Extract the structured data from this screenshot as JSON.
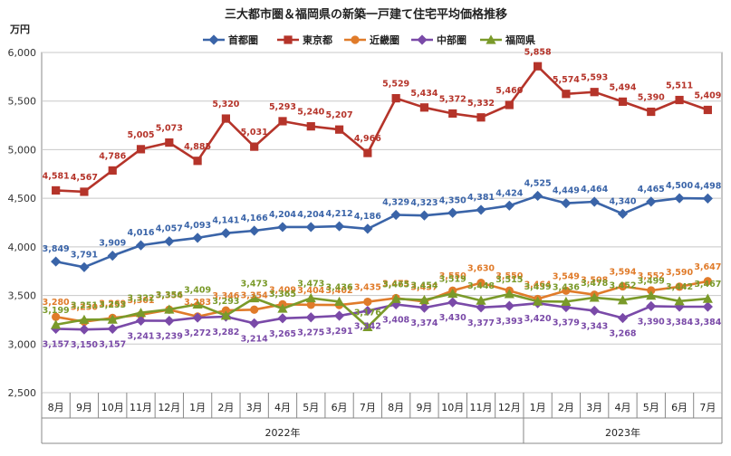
{
  "chart_data": {
    "type": "line",
    "title": "三大都市圏＆福岡県の新築一戸建て住宅平均価格推移",
    "unit_label": "万円",
    "ylim": [
      2500,
      6000
    ],
    "yticks": [
      2500,
      3000,
      3500,
      4000,
      4500,
      5000,
      5500,
      6000
    ],
    "ytick_labels": [
      "2,500",
      "3,000",
      "3,500",
      "4,000",
      "4,500",
      "5,000",
      "5,500",
      "6,000"
    ],
    "grid": true,
    "legend_position": "top",
    "categories": [
      "8月",
      "9月",
      "10月",
      "11月",
      "12月",
      "1月",
      "2月",
      "3月",
      "4月",
      "5月",
      "6月",
      "7月",
      "8月",
      "9月",
      "10月",
      "11月",
      "12月",
      "1月",
      "2月",
      "3月",
      "4月",
      "5月",
      "6月",
      "7月"
    ],
    "year_groups": [
      {
        "label": "2022年",
        "start": 0,
        "end": 16
      },
      {
        "label": "2023年",
        "start": 17,
        "end": 23
      }
    ],
    "series": [
      {
        "name": "首都圏",
        "color": "#3a64a8",
        "marker": "diamond",
        "values": [
          3849,
          3791,
          3909,
          4016,
          4057,
          4093,
          4141,
          4166,
          4204,
          4204,
          4212,
          4186,
          4329,
          4323,
          4350,
          4381,
          4424,
          4525,
          4449,
          4464,
          4340,
          4465,
          4500,
          4498
        ],
        "labels": [
          "3,849",
          "3,791",
          "3,909",
          "4,016",
          "4,057",
          "4,093",
          "4,141",
          "4,166",
          "4,204",
          "4,204",
          "4,212",
          "4,186",
          "4,329",
          "4,323",
          "4,350",
          "4,381",
          "4,424",
          "4,525",
          "4,449",
          "4,464",
          "4,340",
          "4,465",
          "4,500",
          "4,498"
        ]
      },
      {
        "name": "東京都",
        "color": "#b5342a",
        "marker": "square",
        "values": [
          4581,
          4567,
          4786,
          5005,
          5073,
          4885,
          5320,
          5031,
          5293,
          5240,
          5207,
          4966,
          5529,
          5434,
          5372,
          5332,
          5460,
          5858,
          5574,
          5593,
          5494,
          5390,
          5511,
          5409
        ],
        "labels": [
          "4,581",
          "4,567",
          "4,786",
          "5,005",
          "5,073",
          "4,885",
          "5,320",
          "5,031",
          "5,293",
          "5,240",
          "5,207",
          "4,966",
          "5,529",
          "5,434",
          "5,372",
          "5,332",
          "5,460",
          "5,858",
          "5,574",
          "5,593",
          "5,494",
          "5,390",
          "5,511",
          "5,409"
        ]
      },
      {
        "name": "近畿圏",
        "color": "#e07b2a",
        "marker": "circle",
        "values": [
          3280,
          3230,
          3269,
          3301,
          3354,
          3283,
          3346,
          3354,
          3409,
          3404,
          3402,
          3435,
          3473,
          3437,
          3550,
          3630,
          3550,
          3464,
          3549,
          3508,
          3594,
          3552,
          3590,
          3647
        ],
        "labels": [
          "3,280",
          "3,230",
          "3,269",
          "3,301",
          "3,354",
          "3,283",
          "3,346",
          "3,354",
          "3,409",
          "3,404",
          "3,402",
          "3,435",
          "3,473",
          "3,437",
          "3,550",
          "3,630",
          "3,550",
          "3,464",
          "3,549",
          "3,508",
          "3,594",
          "3,552",
          "3,590",
          "3,647"
        ]
      },
      {
        "name": "中部圏",
        "color": "#7a4aa8",
        "marker": "diamond",
        "values": [
          3157,
          3150,
          3157,
          3241,
          3239,
          3272,
          3282,
          3214,
          3265,
          3275,
          3291,
          3342,
          3408,
          3374,
          3430,
          3377,
          3393,
          3420,
          3379,
          3343,
          3268,
          3390,
          3384,
          3384
        ],
        "labels": [
          "3,157",
          "3,150",
          "3,157",
          "3,241",
          "3,239",
          "3,272",
          "3,282",
          "3,214",
          "3,265",
          "3,275",
          "3,291",
          "3,342",
          "3,408",
          "3,374",
          "3,430",
          "3,377",
          "3,393",
          "3,420",
          "3,379",
          "3,343",
          "3,268",
          "3,390",
          "3,384",
          "3,384"
        ]
      },
      {
        "name": "福岡県",
        "color": "#7a9a2a",
        "marker": "triangle",
        "values": [
          3199,
          3251,
          3253,
          3322,
          3356,
          3409,
          3293,
          3473,
          3365,
          3473,
          3436,
          3176,
          3465,
          3454,
          3519,
          3448,
          3515,
          3439,
          3436,
          3478,
          3452,
          3499,
          3442,
          3467
        ],
        "labels": [
          "3,199",
          "3,251",
          "3,253",
          "3,322",
          "3,356",
          "3,409",
          "3,293",
          "3,473",
          "3,365",
          "3,473",
          "3,436",
          "3,176",
          "3,465",
          "3,454",
          "3,519",
          "3,448",
          "3,515",
          "3,439",
          "3,436",
          "3,478",
          "3,452",
          "3,499",
          "3,442",
          "3,467"
        ]
      }
    ]
  }
}
